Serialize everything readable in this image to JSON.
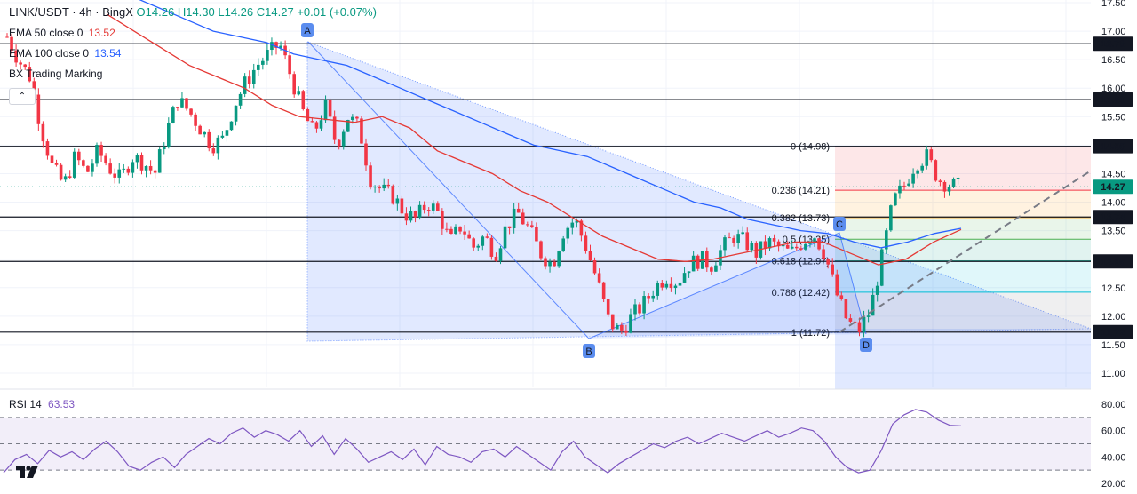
{
  "header": {
    "symbol": "LINK/USDT · 4h · BingX",
    "open": "O14.26",
    "high": "H14.30",
    "low": "L14.26",
    "close": "C14.27",
    "change": "+0.01 (+0.07%)"
  },
  "indicators": {
    "ema50": {
      "label": "EMA 50 close 0",
      "value": "13.52",
      "color": "#e53935"
    },
    "ema100": {
      "label": "EMA 100 close 0",
      "value": "13.54",
      "color": "#2962ff"
    },
    "bx": {
      "label": "BX Trading Marking"
    },
    "rsi": {
      "label": "RSI 14",
      "value": "63.53",
      "color": "#7e57c2"
    }
  },
  "collapse_glyph": "⌃",
  "price_axis": {
    "ticks": [
      "17.50",
      "17.00",
      "16.50",
      "16.00",
      "15.50",
      "15.00",
      "14.50",
      "14.00",
      "13.50",
      "13.00",
      "12.50",
      "12.00",
      "11.50",
      "11.00"
    ],
    "tick_values": [
      17.5,
      17.0,
      16.5,
      16.0,
      15.5,
      15.0,
      14.5,
      14.0,
      13.5,
      13.0,
      12.5,
      12.0,
      11.5,
      11.0
    ],
    "current_price": "14.27",
    "current_price_value": 14.27
  },
  "rsi_axis": {
    "ticks": [
      "80.00",
      "60.00",
      "40.00",
      "20.00"
    ],
    "tick_values": [
      80,
      60,
      40,
      20
    ]
  },
  "levels": [
    {
      "label": "16.78",
      "value": 16.78
    },
    {
      "label": "15.80",
      "value": 15.8
    },
    {
      "label": "14.98",
      "value": 14.98
    },
    {
      "label": "13.74",
      "value": 13.74
    },
    {
      "label": "12.96",
      "value": 12.96
    },
    {
      "label": "11.72",
      "value": 11.72
    }
  ],
  "fib": [
    {
      "label": "0 (14.98)",
      "value": 14.98,
      "color": "#787b86"
    },
    {
      "label": "0.236 (14.21)",
      "value": 14.21,
      "color": "#f23645"
    },
    {
      "label": "0.382 (13.73)",
      "value": 13.73,
      "color": "#ff9800"
    },
    {
      "label": "0.5 (13.35)",
      "value": 13.35,
      "color": "#4caf50"
    },
    {
      "label": "0.618 (12.97)",
      "value": 12.97,
      "color": "#089981"
    },
    {
      "label": "0.786 (12.42)",
      "value": 12.42,
      "color": "#00bcd4"
    },
    {
      "label": "1 (11.72)",
      "value": 11.72,
      "color": "#787b86"
    }
  ],
  "pattern_points": {
    "A": "A",
    "B": "B",
    "C": "C",
    "D": "D"
  },
  "colors": {
    "up": "#089981",
    "down": "#f23645",
    "grid": "#f0f3fa",
    "level": "#131722"
  },
  "chart_data": {
    "type": "candlestick",
    "symbol": "LINK/USDT",
    "timeframe": "4h",
    "exchange": "BingX",
    "ylim": [
      10.7,
      17.6
    ],
    "close_path": [
      16.9,
      16.5,
      16.2,
      15.3,
      14.6,
      14.3,
      14.8,
      14.5,
      14.9,
      14.6,
      14.4,
      14.8,
      14.7,
      14.5,
      15.2,
      15.8,
      15.6,
      15.3,
      15.0,
      15.1,
      15.7,
      16.1,
      16.4,
      16.6,
      16.78,
      16.2,
      15.6,
      15.2,
      15.7,
      15.0,
      15.5,
      15.3,
      14.4,
      14.2,
      14.1,
      13.8,
      13.7,
      14.0,
      13.8,
      13.3,
      13.6,
      13.2,
      13.4,
      13.1,
      13.6,
      13.8,
      13.5,
      13.1,
      12.9,
      13.5,
      13.7,
      13.2,
      12.6,
      11.9,
      11.72,
      12.0,
      12.2,
      12.5,
      12.7,
      12.6,
      12.9,
      13.0,
      12.9,
      13.2,
      13.4,
      13.3,
      13.1,
      13.3,
      13.2,
      13.1,
      13.3,
      13.45,
      13.1,
      12.4,
      11.9,
      11.75,
      12.1,
      13.0,
      14.0,
      14.3,
      14.7,
      14.8,
      14.4,
      14.3,
      14.27
    ],
    "ema50": [
      17.3,
      17.0,
      16.7,
      16.4,
      16.2,
      16.0,
      15.7,
      15.5,
      15.45,
      15.4,
      15.5,
      15.3,
      14.9,
      14.7,
      14.5,
      14.2,
      14.0,
      13.7,
      13.4,
      13.2,
      13.0,
      12.96,
      13.0,
      13.1,
      13.2,
      13.3,
      13.3,
      13.1,
      12.9,
      13.0,
      13.3,
      13.52
    ],
    "ema100": [
      17.6,
      17.4,
      17.2,
      17.0,
      16.9,
      16.8,
      16.6,
      16.5,
      16.4,
      16.2,
      16.0,
      15.8,
      15.6,
      15.4,
      15.2,
      15.0,
      14.9,
      14.8,
      14.6,
      14.4,
      14.2,
      14.0,
      13.9,
      13.7,
      13.6,
      13.5,
      13.45,
      13.3,
      13.2,
      13.3,
      13.45,
      13.54
    ],
    "rsi": [
      28,
      38,
      42,
      35,
      45,
      40,
      44,
      38,
      46,
      52,
      44,
      33,
      30,
      36,
      40,
      32,
      42,
      48,
      54,
      50,
      58,
      62,
      55,
      60,
      57,
      52,
      60,
      48,
      56,
      42,
      54,
      46,
      36,
      40,
      44,
      38,
      46,
      34,
      48,
      42,
      40,
      36,
      44,
      46,
      40,
      48,
      42,
      36,
      30,
      44,
      52,
      40,
      34,
      28,
      35,
      40,
      45,
      50,
      47,
      52,
      55,
      50,
      54,
      58,
      55,
      52,
      56,
      60,
      55,
      58,
      62,
      60,
      52,
      40,
      32,
      28,
      30,
      45,
      65,
      72,
      76,
      74,
      68,
      64,
      63.53
    ]
  }
}
